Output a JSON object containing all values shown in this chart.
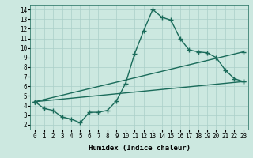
{
  "xlabel": "Humidex (Indice chaleur)",
  "bg_color": "#cce8e0",
  "grid_color": "#aacfc8",
  "line_color": "#1a6b5a",
  "xlim": [
    -0.5,
    23.5
  ],
  "ylim": [
    1.5,
    14.5
  ],
  "xticks": [
    0,
    1,
    2,
    3,
    4,
    5,
    6,
    7,
    8,
    9,
    10,
    11,
    12,
    13,
    14,
    15,
    16,
    17,
    18,
    19,
    20,
    21,
    22,
    23
  ],
  "yticks": [
    2,
    3,
    4,
    5,
    6,
    7,
    8,
    9,
    10,
    11,
    12,
    13,
    14
  ],
  "zigzag_x": [
    0,
    1,
    2,
    3,
    4,
    5,
    6,
    7,
    8,
    9,
    10,
    11,
    12,
    13,
    14,
    15,
    16,
    17,
    18,
    19,
    20,
    21,
    22,
    23
  ],
  "zigzag_y": [
    4.4,
    3.7,
    3.5,
    2.8,
    2.6,
    2.2,
    3.3,
    3.3,
    3.5,
    4.5,
    6.3,
    9.4,
    11.8,
    14.0,
    13.2,
    12.9,
    11.0,
    9.8,
    9.6,
    9.5,
    9.0,
    7.7,
    6.8,
    6.5
  ],
  "upper_trend_x": [
    0,
    23
  ],
  "upper_trend_y": [
    4.4,
    9.6
  ],
  "lower_trend_x": [
    0,
    23
  ],
  "lower_trend_y": [
    4.4,
    6.5
  ],
  "marker": "+",
  "markersize": 4,
  "linewidth": 1.0
}
